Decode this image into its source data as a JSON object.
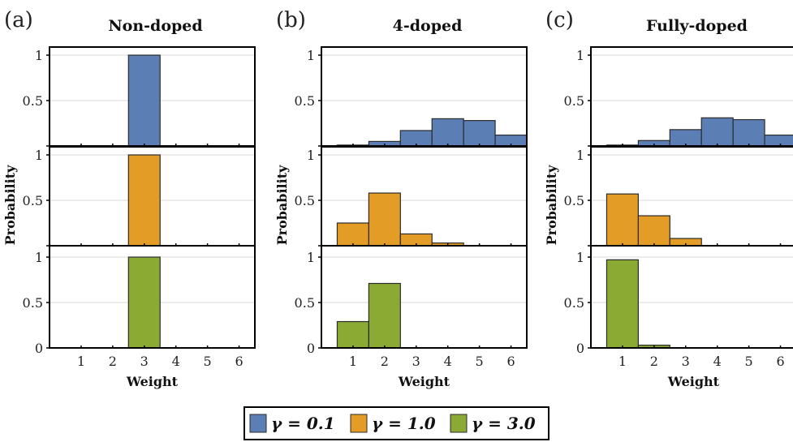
{
  "colors": {
    "gamma_0_1": "#5b7fb5",
    "gamma_1_0": "#e39c26",
    "gamma_3_0": "#8aaa33",
    "bar_stroke": "#2b2b2b",
    "grid": "#d9d9d9",
    "frame": "#000000"
  },
  "legend": {
    "items": [
      {
        "label": "γ = 0.1",
        "series": "gamma_0_1"
      },
      {
        "label": "γ = 1.0",
        "series": "gamma_1_0"
      },
      {
        "label": "γ = 3.0",
        "series": "gamma_3_0"
      }
    ]
  },
  "chart_data": [
    {
      "type": "bar",
      "panel_label": "(a)",
      "title": "Non-doped",
      "xlabel": "Weight",
      "ylabel": "Probability",
      "categories": [
        "1",
        "2",
        "3",
        "4",
        "5",
        "6"
      ],
      "ylim": [
        0,
        1.1
      ],
      "yticks": [
        "0",
        "0.5",
        "1"
      ],
      "series": [
        {
          "name": "γ = 0.1",
          "values": [
            0,
            0,
            1.0,
            0,
            0,
            0
          ]
        },
        {
          "name": "γ = 1.0",
          "values": [
            0,
            0,
            1.0,
            0,
            0,
            0
          ]
        },
        {
          "name": "γ = 3.0",
          "values": [
            0,
            0,
            1.0,
            0,
            0,
            0
          ]
        }
      ]
    },
    {
      "type": "bar",
      "panel_label": "(b)",
      "title": "4-doped",
      "xlabel": "Weight",
      "ylabel": "Probability",
      "categories": [
        "1",
        "2",
        "3",
        "4",
        "5",
        "6"
      ],
      "ylim": [
        0,
        1.1
      ],
      "yticks": [
        "0",
        "0.5",
        "1"
      ],
      "series": [
        {
          "name": "γ = 0.1",
          "values": [
            0.01,
            0.05,
            0.17,
            0.3,
            0.28,
            0.12
          ]
        },
        {
          "name": "γ = 1.0",
          "values": [
            0.25,
            0.58,
            0.13,
            0.03,
            0,
            0
          ]
        },
        {
          "name": "γ = 3.0",
          "values": [
            0.29,
            0.71,
            0,
            0,
            0,
            0
          ]
        }
      ]
    },
    {
      "type": "bar",
      "panel_label": "(c)",
      "title": "Fully-doped",
      "xlabel": "Weight",
      "ylabel": "Probability",
      "categories": [
        "1",
        "2",
        "3",
        "4",
        "5",
        "6"
      ],
      "ylim": [
        0,
        1.1
      ],
      "yticks": [
        "0",
        "0.5",
        "1"
      ],
      "series": [
        {
          "name": "γ = 0.1",
          "values": [
            0.01,
            0.06,
            0.18,
            0.31,
            0.29,
            0.12
          ]
        },
        {
          "name": "γ = 1.0",
          "values": [
            0.57,
            0.33,
            0.08,
            0,
            0,
            0
          ]
        },
        {
          "name": "γ = 3.0",
          "values": [
            0.97,
            0.03,
            0,
            0,
            0,
            0
          ]
        }
      ]
    }
  ]
}
